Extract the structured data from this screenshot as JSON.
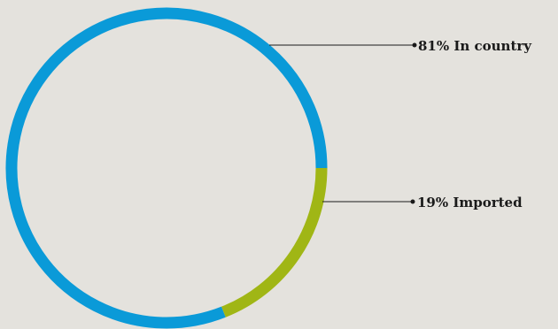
{
  "chart_data": {
    "type": "pie",
    "style": "donut-ring",
    "slices": [
      {
        "label": "In country",
        "value": 81,
        "value_text": "81%",
        "color": "#0a9ad8"
      },
      {
        "label": "Imported",
        "value": 19,
        "value_text": "19%",
        "color": "#a0b615"
      }
    ],
    "title": "",
    "legend": "leader-line labels on right"
  },
  "colors": {
    "background": "#e4e2dd",
    "leader_line": "#1a1a1a"
  }
}
